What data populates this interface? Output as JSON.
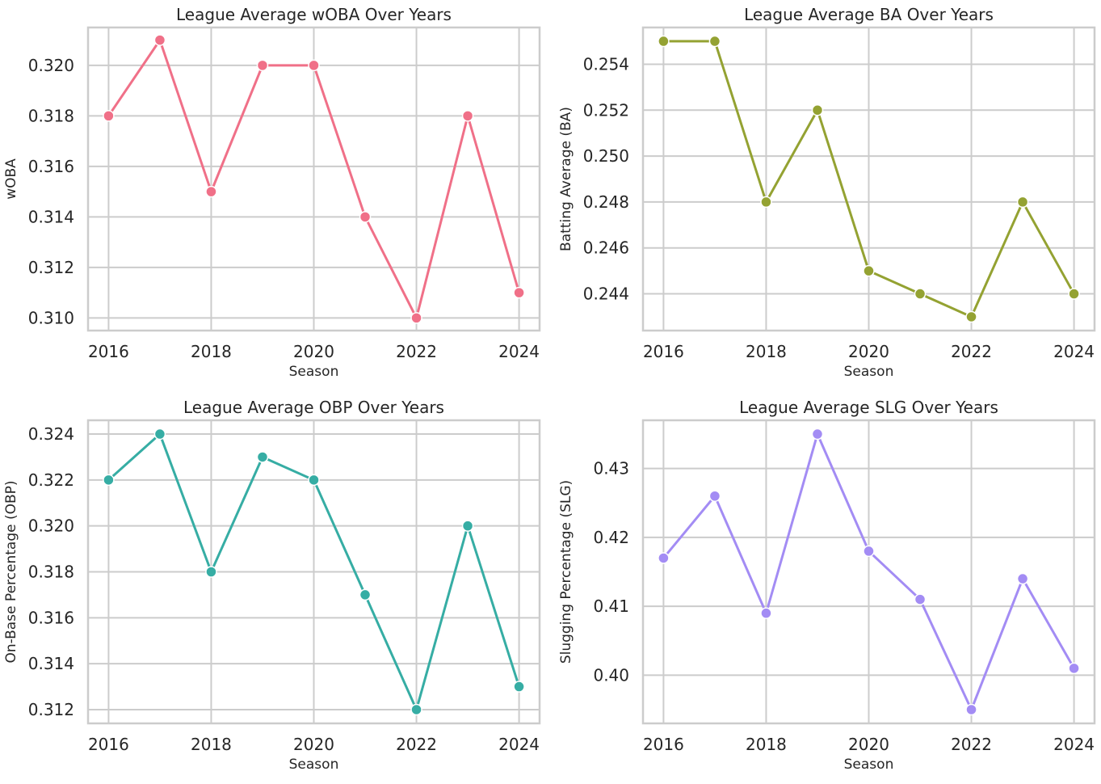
{
  "chart_data": [
    {
      "type": "line",
      "title": "League Average wOBA Over Years",
      "xlabel": "Season",
      "ylabel": "wOBA",
      "x": [
        2016,
        2017,
        2018,
        2019,
        2020,
        2021,
        2022,
        2023,
        2024
      ],
      "values": [
        0.318,
        0.321,
        0.315,
        0.32,
        0.32,
        0.314,
        0.31,
        0.318,
        0.311
      ],
      "xticks": [
        2016,
        2018,
        2020,
        2022,
        2024
      ],
      "yticks": [
        0.31,
        0.312,
        0.314,
        0.316,
        0.318,
        0.32
      ],
      "ytick_labels": [
        "0.310",
        "0.312",
        "0.314",
        "0.316",
        "0.318",
        "0.320"
      ],
      "xlim": [
        2015.6,
        2024.4
      ],
      "ylim": [
        0.3095,
        0.3215
      ],
      "grid": true,
      "color": "#f07088"
    },
    {
      "type": "line",
      "title": "League Average BA Over Years",
      "xlabel": "Season",
      "ylabel": "Batting Average (BA)",
      "x": [
        2016,
        2017,
        2018,
        2019,
        2020,
        2021,
        2022,
        2023,
        2024
      ],
      "values": [
        0.255,
        0.255,
        0.248,
        0.252,
        0.245,
        0.244,
        0.243,
        0.248,
        0.244
      ],
      "xticks": [
        2016,
        2018,
        2020,
        2022,
        2024
      ],
      "yticks": [
        0.244,
        0.246,
        0.248,
        0.25,
        0.252,
        0.254
      ],
      "ytick_labels": [
        "0.244",
        "0.246",
        "0.248",
        "0.250",
        "0.252",
        "0.254"
      ],
      "xlim": [
        2015.6,
        2024.4
      ],
      "ylim": [
        0.2424,
        0.2556
      ],
      "grid": true,
      "color": "#94a232"
    },
    {
      "type": "line",
      "title": "League Average OBP Over Years",
      "xlabel": "Season",
      "ylabel": "On-Base Percentage (OBP)",
      "x": [
        2016,
        2017,
        2018,
        2019,
        2020,
        2021,
        2022,
        2023,
        2024
      ],
      "values": [
        0.322,
        0.324,
        0.318,
        0.323,
        0.322,
        0.317,
        0.312,
        0.32,
        0.313
      ],
      "xticks": [
        2016,
        2018,
        2020,
        2022,
        2024
      ],
      "yticks": [
        0.312,
        0.314,
        0.316,
        0.318,
        0.32,
        0.322,
        0.324
      ],
      "ytick_labels": [
        "0.312",
        "0.314",
        "0.316",
        "0.318",
        "0.320",
        "0.322",
        "0.324"
      ],
      "xlim": [
        2015.6,
        2024.4
      ],
      "ylim": [
        0.3114,
        0.3246
      ],
      "grid": true,
      "color": "#36ada4"
    },
    {
      "type": "line",
      "title": "League Average SLG Over Years",
      "xlabel": "Season",
      "ylabel": "Slugging Percentage (SLG)",
      "x": [
        2016,
        2017,
        2018,
        2019,
        2020,
        2021,
        2022,
        2023,
        2024
      ],
      "values": [
        0.417,
        0.426,
        0.409,
        0.435,
        0.418,
        0.411,
        0.395,
        0.414,
        0.401
      ],
      "xticks": [
        2016,
        2018,
        2020,
        2022,
        2024
      ],
      "yticks": [
        0.4,
        0.41,
        0.42,
        0.43
      ],
      "ytick_labels": [
        "0.40",
        "0.41",
        "0.42",
        "0.43"
      ],
      "xlim": [
        2015.6,
        2024.4
      ],
      "ylim": [
        0.393,
        0.437
      ],
      "grid": true,
      "color": "#a38cf4"
    }
  ]
}
